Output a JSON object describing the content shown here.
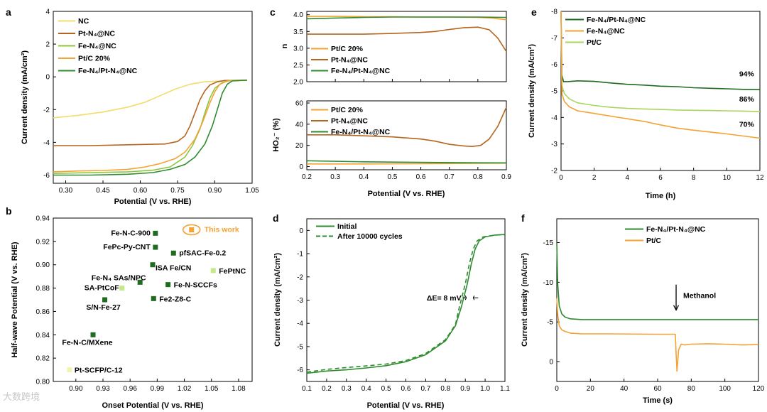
{
  "watermark": "大数跨境",
  "chart_data": [
    {
      "panel": "a",
      "type": "line",
      "xlabel": "Potential (V vs. RHE)",
      "ylabel": "Current density (mA/cm²)",
      "xlim": [
        0.25,
        1.05
      ],
      "ylim": [
        -6.5,
        4
      ],
      "xticks": [
        0.3,
        0.45,
        0.6,
        0.75,
        0.9,
        1.05
      ],
      "xtick_labels": [
        "0.30",
        "0.45",
        "0.60",
        "0.75",
        "0.90",
        "1.05"
      ],
      "yticks": [
        -6,
        -4,
        -2,
        0,
        2,
        4
      ],
      "ytick_labels": [
        "-6",
        "-4",
        "-2",
        "0",
        "2",
        "4"
      ],
      "legend": [
        {
          "label": "NC",
          "color": "#f3dc6a"
        },
        {
          "label": "Pt-N₄@NC",
          "color": "#b5651d"
        },
        {
          "label": "Fe-N₄@NC",
          "color": "#8cc63f"
        },
        {
          "label": "Pt/C 20%",
          "color": "#f4a234"
        },
        {
          "label": "Fe-N₄/Pt-N₄@NC",
          "color": "#2e8b2e"
        }
      ],
      "series": [
        {
          "name": "NC",
          "color": "#f3dc6a",
          "x": [
            0.25,
            0.35,
            0.45,
            0.55,
            0.62,
            0.68,
            0.74,
            0.8,
            0.86,
            0.92,
            0.97,
            1.03
          ],
          "y": [
            -2.5,
            -2.35,
            -2.15,
            -1.85,
            -1.55,
            -1.15,
            -0.75,
            -0.45,
            -0.3,
            -0.25,
            -0.22,
            -0.2
          ]
        },
        {
          "name": "Pt-N₄@NC",
          "color": "#b5651d",
          "x": [
            0.25,
            0.4,
            0.55,
            0.7,
            0.75,
            0.78,
            0.8,
            0.82,
            0.84,
            0.86,
            0.88,
            0.91,
            0.94,
            1.03
          ],
          "y": [
            -4.2,
            -4.2,
            -4.15,
            -4.1,
            -3.95,
            -3.6,
            -3.0,
            -2.2,
            -1.4,
            -0.85,
            -0.5,
            -0.3,
            -0.22,
            -0.2
          ]
        },
        {
          "name": "Fe-N₄@NC",
          "color": "#8cc63f",
          "x": [
            0.25,
            0.4,
            0.55,
            0.65,
            0.72,
            0.78,
            0.81,
            0.84,
            0.86,
            0.88,
            0.9,
            0.93,
            0.96,
            1.03
          ],
          "y": [
            -5.9,
            -5.85,
            -5.8,
            -5.7,
            -5.5,
            -4.9,
            -4.2,
            -3.2,
            -2.2,
            -1.3,
            -0.7,
            -0.35,
            -0.22,
            -0.2
          ]
        },
        {
          "name": "Pt/C 20%",
          "color": "#f4a234",
          "x": [
            0.25,
            0.35,
            0.45,
            0.55,
            0.62,
            0.68,
            0.74,
            0.78,
            0.82,
            0.85,
            0.88,
            0.9,
            0.92,
            0.95,
            1.03
          ],
          "y": [
            -5.8,
            -5.75,
            -5.72,
            -5.65,
            -5.5,
            -5.3,
            -5.0,
            -4.6,
            -3.8,
            -2.8,
            -1.6,
            -0.9,
            -0.45,
            -0.25,
            -0.2
          ]
        },
        {
          "name": "Fe-N₄/Pt-N₄@NC",
          "color": "#2e8b2e",
          "x": [
            0.25,
            0.4,
            0.55,
            0.65,
            0.72,
            0.78,
            0.82,
            0.86,
            0.89,
            0.91,
            0.93,
            0.95,
            0.97,
            1.03
          ],
          "y": [
            -6.0,
            -6.0,
            -5.95,
            -5.85,
            -5.65,
            -5.35,
            -4.9,
            -4.1,
            -3.0,
            -2.0,
            -1.0,
            -0.45,
            -0.25,
            -0.2
          ]
        }
      ]
    },
    {
      "panel": "b",
      "type": "scatter",
      "xlabel": "Onset Potential (V vs. RHE)",
      "ylabel": "Half-wave Potential (V vs. RHE)",
      "xlim": [
        0.875,
        1.095
      ],
      "ylim": [
        0.8,
        0.94
      ],
      "xticks": [
        0.9,
        0.93,
        0.96,
        0.99,
        1.02,
        1.05,
        1.08
      ],
      "xtick_labels": [
        "0.90",
        "0.93",
        "0.96",
        "0.99",
        "1.02",
        "1.05",
        "1.08"
      ],
      "yticks": [
        0.8,
        0.82,
        0.84,
        0.86,
        0.88,
        0.9,
        0.92,
        0.94
      ],
      "ytick_labels": [
        "0.80",
        "0.82",
        "0.84",
        "0.86",
        "0.88",
        "0.90",
        "0.92",
        "0.94"
      ],
      "points": [
        {
          "label": "Fe-N-C-900",
          "x": 0.988,
          "y": 0.927,
          "color": "#1f6b1f"
        },
        {
          "label": "FePc-Py-CNT",
          "x": 0.988,
          "y": 0.915,
          "color": "#1f6b1f"
        },
        {
          "label": "pfSAC-Fe-0.2",
          "x": 1.008,
          "y": 0.91,
          "color": "#1f6b1f"
        },
        {
          "label": "ISA Fe/CN",
          "x": 0.985,
          "y": 0.9,
          "color": "#1f6b1f"
        },
        {
          "label": "FePtNC",
          "x": 1.052,
          "y": 0.895,
          "color": "#c4e88a"
        },
        {
          "label": "Fe-N₄ SAs/NPC",
          "x": 0.971,
          "y": 0.885,
          "color": "#1f6b1f"
        },
        {
          "label": "Fe-N-SCCFs",
          "x": 1.002,
          "y": 0.883,
          "color": "#1f6b1f"
        },
        {
          "label": "SA-PtCoF",
          "x": 0.951,
          "y": 0.88,
          "color": "#c4e88a"
        },
        {
          "label": "Fe2-Z8-C",
          "x": 0.986,
          "y": 0.871,
          "color": "#1f6b1f"
        },
        {
          "label": "S/N-Fe-27",
          "x": 0.932,
          "y": 0.87,
          "color": "#1f6b1f"
        },
        {
          "label": "Fe-N-C/MXene",
          "x": 0.919,
          "y": 0.84,
          "color": "#1f6b1f"
        },
        {
          "label": "Pt-SCFP/C-12",
          "x": 0.893,
          "y": 0.81,
          "color": "#f1f3b0"
        },
        {
          "label": "This work",
          "x": 1.028,
          "y": 0.93,
          "color": "#f4a234",
          "highlight": true
        }
      ]
    },
    {
      "panel": "c-top",
      "type": "line",
      "ylabel": "n",
      "xlim": [
        0.2,
        0.9
      ],
      "ylim": [
        2.0,
        4.1
      ],
      "xticks": [
        0.2,
        0.3,
        0.4,
        0.5,
        0.6,
        0.7,
        0.8,
        0.9
      ],
      "xtick_labels": [
        "0.2",
        "0.3",
        "0.4",
        "0.5",
        "0.6",
        "0.7",
        "0.8",
        "0.9"
      ],
      "yticks": [
        2.0,
        2.5,
        3.0,
        3.5,
        4.0
      ],
      "ytick_labels": [
        "2.0",
        "2.5",
        "3.0",
        "3.5",
        "4.0"
      ],
      "legend": [
        {
          "label": "Pt/C 20%",
          "color": "#f4a234"
        },
        {
          "label": "Pt-N₄@NC",
          "color": "#b5651d"
        },
        {
          "label": "Fe-N₄/Pt-N₄@NC",
          "color": "#2e8b2e"
        }
      ],
      "series": [
        {
          "name": "Pt/C 20%",
          "color": "#f4a234",
          "x": [
            0.2,
            0.3,
            0.4,
            0.5,
            0.6,
            0.7,
            0.8,
            0.85,
            0.9
          ],
          "y": [
            3.95,
            3.95,
            3.94,
            3.94,
            3.93,
            3.93,
            3.92,
            3.9,
            3.85
          ]
        },
        {
          "name": "Pt-N₄@NC",
          "color": "#b5651d",
          "x": [
            0.2,
            0.3,
            0.4,
            0.5,
            0.6,
            0.65,
            0.7,
            0.75,
            0.8,
            0.84,
            0.87,
            0.9
          ],
          "y": [
            3.42,
            3.42,
            3.42,
            3.44,
            3.47,
            3.5,
            3.56,
            3.61,
            3.63,
            3.55,
            3.3,
            2.9
          ]
        },
        {
          "name": "Fe-N₄/Pt-N₄@NC",
          "color": "#2e8b2e",
          "x": [
            0.2,
            0.3,
            0.4,
            0.5,
            0.6,
            0.7,
            0.8,
            0.9
          ],
          "y": [
            3.88,
            3.9,
            3.92,
            3.93,
            3.93,
            3.93,
            3.93,
            3.92
          ]
        }
      ]
    },
    {
      "panel": "c-bottom",
      "type": "line",
      "xlabel": "Potential (V vs. RHE)",
      "ylabel": "HO₂⁻ (%)",
      "xlim": [
        0.2,
        0.9
      ],
      "ylim": [
        -3,
        62
      ],
      "xticks": [
        0.2,
        0.3,
        0.4,
        0.5,
        0.6,
        0.7,
        0.8,
        0.9
      ],
      "xtick_labels": [
        "0.2",
        "0.3",
        "0.4",
        "0.5",
        "0.6",
        "0.7",
        "0.8",
        "0.9"
      ],
      "yticks": [
        0,
        20,
        40,
        60
      ],
      "ytick_labels": [
        "0",
        "20",
        "40",
        "60"
      ],
      "legend": [
        {
          "label": "Pt/C 20%",
          "color": "#f4a234"
        },
        {
          "label": "Pt-N₄@NC",
          "color": "#b5651d"
        },
        {
          "label": "Fe-N₄/Pt-N₄@NC",
          "color": "#2e8b2e"
        }
      ],
      "series": [
        {
          "name": "Pt/C 20%",
          "color": "#f4a234",
          "x": [
            0.2,
            0.4,
            0.6,
            0.8,
            0.9
          ],
          "y": [
            2.5,
            2.5,
            2.7,
            3.0,
            3.2
          ]
        },
        {
          "name": "Pt-N₄@NC",
          "color": "#b5651d",
          "x": [
            0.2,
            0.3,
            0.4,
            0.5,
            0.6,
            0.65,
            0.7,
            0.75,
            0.78,
            0.81,
            0.84,
            0.87,
            0.9
          ],
          "y": [
            30,
            30,
            29,
            28,
            26,
            24,
            21,
            19.5,
            19,
            20,
            26,
            38,
            56
          ]
        },
        {
          "name": "Fe-N₄/Pt-N₄@NC",
          "color": "#2e8b2e",
          "x": [
            0.2,
            0.4,
            0.6,
            0.8,
            0.9
          ],
          "y": [
            5.5,
            4.5,
            4.0,
            3.6,
            3.5
          ]
        }
      ]
    },
    {
      "panel": "d",
      "type": "line",
      "xlabel": "Potential (V vs. RHE)",
      "ylabel": "Current density (mA/cm²)",
      "xlim": [
        0.1,
        1.1
      ],
      "ylim": [
        -6.5,
        0.5
      ],
      "xticks": [
        0.1,
        0.2,
        0.3,
        0.4,
        0.5,
        0.6,
        0.7,
        0.8,
        0.9,
        1.0,
        1.1
      ],
      "xtick_labels": [
        "0.1",
        "0.2",
        "0.3",
        "0.4",
        "0.5",
        "0.6",
        "0.7",
        "0.8",
        "0.9",
        "1.0",
        "1.1"
      ],
      "yticks": [
        -6,
        -5,
        -4,
        -3,
        -2,
        -1,
        0
      ],
      "ytick_labels": [
        "-6",
        "-5",
        "-4",
        "-3",
        "-2",
        "-1",
        "0"
      ],
      "legend": [
        {
          "label": "Initial",
          "color": "#2e8b2e",
          "dash": false
        },
        {
          "label": "After 10000 cycles",
          "color": "#2e8b2e",
          "dash": true
        }
      ],
      "annotation": "ΔE= 8 mV",
      "series": [
        {
          "name": "Initial",
          "color": "#2e8b2e",
          "dash": false,
          "x": [
            0.1,
            0.2,
            0.3,
            0.4,
            0.5,
            0.6,
            0.7,
            0.8,
            0.85,
            0.88,
            0.91,
            0.93,
            0.95,
            0.97,
            1.0,
            1.05,
            1.1
          ],
          "y": [
            -6.15,
            -6.05,
            -6.0,
            -5.92,
            -5.82,
            -5.65,
            -5.35,
            -4.75,
            -4.1,
            -3.3,
            -2.3,
            -1.45,
            -0.8,
            -0.45,
            -0.28,
            -0.2,
            -0.18
          ]
        },
        {
          "name": "After 10000 cycles",
          "color": "#2e8b2e",
          "dash": true,
          "x": [
            0.1,
            0.2,
            0.3,
            0.4,
            0.5,
            0.6,
            0.7,
            0.8,
            0.85,
            0.87,
            0.9,
            0.92,
            0.94,
            0.96,
            0.99,
            1.05,
            1.1
          ],
          "y": [
            -6.1,
            -5.98,
            -5.9,
            -5.83,
            -5.75,
            -5.6,
            -5.3,
            -4.7,
            -4.05,
            -3.3,
            -2.3,
            -1.45,
            -0.8,
            -0.45,
            -0.28,
            -0.2,
            -0.18
          ]
        }
      ]
    },
    {
      "panel": "e",
      "type": "line",
      "xlabel": "Time (h)",
      "ylabel": "Current density (mA/cm²)",
      "xlim": [
        0,
        12
      ],
      "ylim": [
        -8,
        -2
      ],
      "yreversed": true,
      "xticks": [
        0,
        2,
        4,
        6,
        8,
        10,
        12
      ],
      "xtick_labels": [
        "0",
        "2",
        "4",
        "6",
        "8",
        "10",
        "12"
      ],
      "yticks": [
        -8,
        -7,
        -6,
        -5,
        -4,
        -3,
        -2
      ],
      "ytick_labels": [
        "-8",
        "-7",
        "-6",
        "-5",
        "-4",
        "-3",
        "-2"
      ],
      "legend": [
        {
          "label": "Fe-N₄/Pt-N₄@NC",
          "color": "#1f6b1f"
        },
        {
          "label": "Fe-N₄@NC",
          "color": "#f4a234"
        },
        {
          "label": "Pt/C",
          "color": "#a8d65c"
        }
      ],
      "retention_labels": [
        {
          "text": "94%",
          "series": "Fe-N₄/Pt-N₄@NC"
        },
        {
          "text": "86%",
          "series": "Pt/C"
        },
        {
          "text": "70%",
          "series": "Fe-N₄@NC"
        }
      ],
      "series": [
        {
          "name": "Fe-N₄/Pt-N₄@NC",
          "color": "#1f6b1f",
          "x": [
            0,
            0.05,
            0.15,
            0.4,
            1,
            2,
            3,
            4,
            5,
            6,
            7,
            8,
            9,
            10,
            11,
            12
          ],
          "y": [
            -8,
            -5.6,
            -5.35,
            -5.35,
            -5.38,
            -5.36,
            -5.3,
            -5.25,
            -5.22,
            -5.18,
            -5.16,
            -5.12,
            -5.1,
            -5.08,
            -5.06,
            -5.05
          ]
        },
        {
          "name": "Pt/C",
          "color": "#a8d65c",
          "x": [
            0,
            0.05,
            0.2,
            0.5,
            1,
            2,
            3,
            4,
            5,
            6,
            7,
            8,
            9,
            10,
            11,
            12
          ],
          "y": [
            -8,
            -5.2,
            -4.9,
            -4.7,
            -4.55,
            -4.45,
            -4.38,
            -4.34,
            -4.32,
            -4.3,
            -4.28,
            -4.27,
            -4.26,
            -4.25,
            -4.24,
            -4.22
          ]
        },
        {
          "name": "Fe-N₄@NC",
          "color": "#f4a234",
          "x": [
            0,
            0.05,
            0.2,
            0.5,
            1,
            2,
            3,
            4,
            5,
            6,
            7,
            8,
            9,
            10,
            11,
            12
          ],
          "y": [
            -8,
            -4.9,
            -4.6,
            -4.4,
            -4.25,
            -4.15,
            -4.05,
            -3.95,
            -3.85,
            -3.72,
            -3.6,
            -3.52,
            -3.45,
            -3.38,
            -3.3,
            -3.22
          ]
        }
      ]
    },
    {
      "panel": "f",
      "type": "line",
      "xlabel": "Time (s)",
      "ylabel": "Current density (mA/cm²)",
      "xlim": [
        0,
        120
      ],
      "ylim": [
        -18,
        2.5
      ],
      "yreversed": true,
      "xticks": [
        0,
        20,
        40,
        60,
        80,
        100,
        120
      ],
      "xtick_labels": [
        "0",
        "20",
        "40",
        "60",
        "80",
        "100",
        "120"
      ],
      "yticks": [
        -15,
        -10,
        -5,
        0
      ],
      "ytick_labels": [
        "-15",
        "-10",
        "-5",
        "0"
      ],
      "legend": [
        {
          "label": "Fe-N₄/Pt-N₄@NC",
          "color": "#2e8b2e"
        },
        {
          "label": "Pt/C",
          "color": "#f4a234"
        }
      ],
      "annotation": "Methanol",
      "annotation_x": 71,
      "series": [
        {
          "name": "Fe-N₄/Pt-N₄@NC",
          "color": "#2e8b2e",
          "x": [
            0,
            0.5,
            1.5,
            3,
            5,
            8,
            15,
            30,
            60,
            71,
            72,
            90,
            120
          ],
          "y": [
            -15,
            -10,
            -7,
            -6,
            -5.6,
            -5.4,
            -5.3,
            -5.3,
            -5.3,
            -5.3,
            -5.3,
            -5.3,
            -5.3
          ]
        },
        {
          "name": "Pt/C",
          "color": "#f4a234",
          "x": [
            0,
            0.5,
            1.5,
            3,
            5,
            8,
            15,
            30,
            60,
            70.5,
            71,
            71.5,
            72.5,
            74,
            76,
            80,
            90,
            100,
            110,
            120
          ],
          "y": [
            -8,
            -6,
            -4.5,
            -4,
            -3.8,
            -3.6,
            -3.5,
            -3.5,
            -3.45,
            -3.45,
            -1,
            1.2,
            -1.5,
            -2.2,
            -2.1,
            -2.2,
            -2.25,
            -2.2,
            -2.1,
            -2.15
          ]
        }
      ]
    }
  ]
}
